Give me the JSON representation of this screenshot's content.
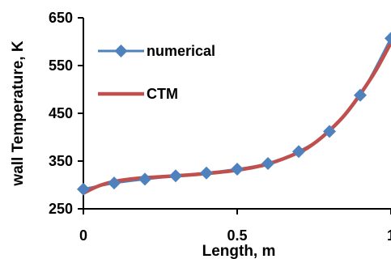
{
  "chart_data": {
    "type": "line",
    "title": "",
    "xlabel": "Length, m",
    "ylabel": "wall Temperature, K",
    "xlim": [
      0,
      1
    ],
    "ylim": [
      250,
      650
    ],
    "x_ticks": [
      0,
      0.5,
      1
    ],
    "x_tick_labels": [
      "0",
      "0.5",
      "1"
    ],
    "y_ticks": [
      250,
      350,
      450,
      550,
      650
    ],
    "y_tick_labels": [
      "250",
      "350",
      "450",
      "550",
      "650"
    ],
    "grid": false,
    "legend_position": "top-left",
    "series": [
      {
        "name": "numerical",
        "style": "line-with-diamond-markers",
        "color": "#4F81BD",
        "x": [
          0,
          0.1,
          0.2,
          0.3,
          0.4,
          0.5,
          0.6,
          0.7,
          0.8,
          0.9,
          1.0
        ],
        "y": [
          291,
          304,
          312,
          319,
          325,
          333,
          345,
          370,
          412,
          488,
          607
        ]
      },
      {
        "name": "CTM",
        "style": "line",
        "color": "#C0504D",
        "x": [
          0,
          0.05,
          0.1,
          0.15,
          0.2,
          0.3,
          0.4,
          0.5,
          0.6,
          0.7,
          0.75,
          0.8,
          0.85,
          0.9,
          0.95,
          1.0
        ],
        "y": [
          283,
          298,
          307,
          312,
          315,
          319,
          324,
          331,
          344,
          368,
          387,
          414,
          447,
          490,
          539,
          598
        ]
      }
    ]
  }
}
